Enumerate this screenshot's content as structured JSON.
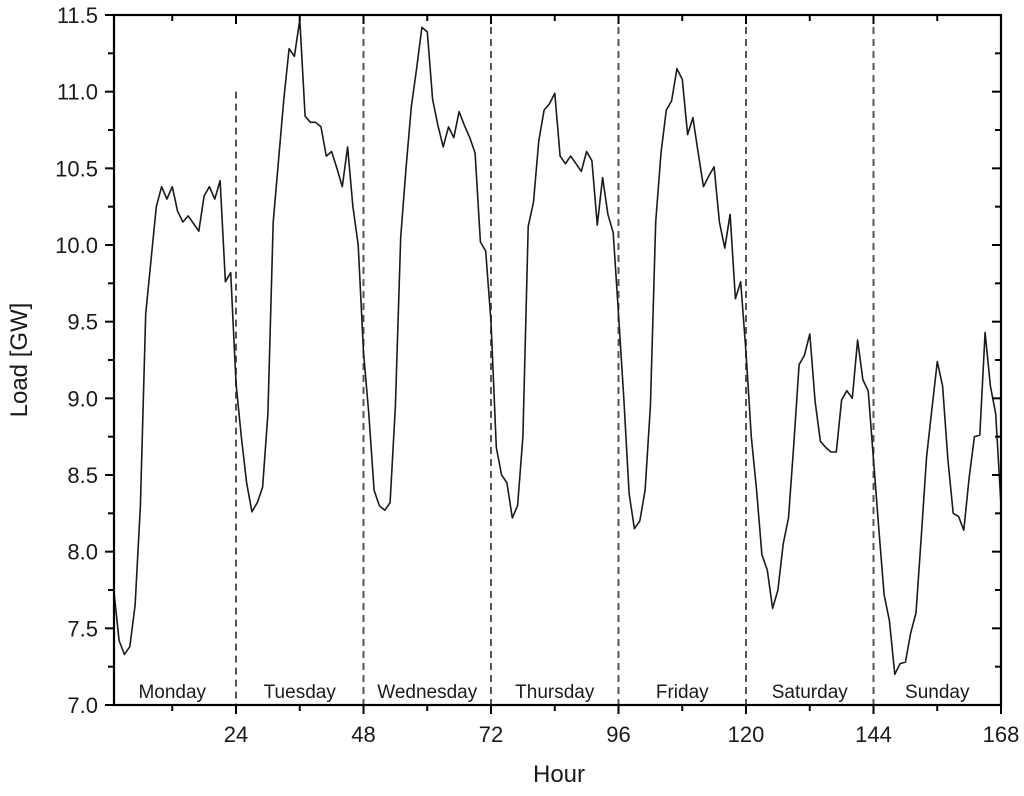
{
  "chart_data": {
    "type": "line",
    "title": "",
    "xlabel": "Hour",
    "ylabel": "Load [GW]",
    "xlim": [
      1,
      168
    ],
    "ylim": [
      7.0,
      11.5
    ],
    "grid": false,
    "legend": null,
    "xticks": [
      24,
      48,
      72,
      96,
      120,
      144,
      168
    ],
    "xtick_labels": [
      "24",
      "48",
      "72",
      "96",
      "120",
      "144",
      "168"
    ],
    "x_minor_ticks": [
      12,
      36,
      60,
      84,
      108,
      132,
      156
    ],
    "yticks": [
      7.0,
      7.5,
      8.0,
      8.5,
      9.0,
      9.5,
      10.0,
      10.5,
      11.0,
      11.5
    ],
    "ytick_labels": [
      "7.0",
      "7.5",
      "8.0",
      "8.5",
      "9.0",
      "9.5",
      "10.0",
      "10.5",
      "11.0",
      "11.5"
    ],
    "y_minor_ticks": [
      7.25,
      7.75,
      8.25,
      8.75,
      9.25,
      9.75,
      10.25,
      10.75,
      11.25
    ],
    "day_dividers": [
      {
        "x": 24,
        "y_top": 11.0
      },
      {
        "x": 48,
        "y_top": 11.5
      },
      {
        "x": 72,
        "y_top": 11.5
      },
      {
        "x": 96,
        "y_top": 11.5
      },
      {
        "x": 120,
        "y_top": 11.5
      },
      {
        "x": 144,
        "y_top": 11.5
      }
    ],
    "day_labels": [
      {
        "label": "Monday",
        "x": 12
      },
      {
        "label": "Tuesday",
        "x": 36
      },
      {
        "label": "Wednesday",
        "x": 60
      },
      {
        "label": "Thursday",
        "x": 84
      },
      {
        "label": "Friday",
        "x": 108
      },
      {
        "label": "Saturday",
        "x": 132
      },
      {
        "label": "Sunday",
        "x": 156
      }
    ],
    "series": [
      {
        "name": "Load",
        "color": "#1a1a1a",
        "x_start": 1,
        "x_step": 1,
        "values": [
          7.75,
          7.42,
          7.33,
          7.38,
          7.65,
          8.3,
          9.55,
          9.9,
          10.25,
          10.38,
          10.3,
          10.38,
          10.22,
          10.15,
          10.19,
          10.14,
          10.09,
          10.32,
          10.38,
          10.3,
          10.42,
          9.76,
          9.82,
          9.1,
          8.75,
          8.45,
          8.26,
          8.32,
          8.42,
          8.9,
          10.15,
          10.55,
          10.95,
          11.28,
          11.23,
          11.47,
          10.84,
          10.8,
          10.8,
          10.77,
          10.58,
          10.61,
          10.5,
          10.38,
          10.64,
          10.25,
          10.0,
          9.3,
          8.9,
          8.4,
          8.3,
          8.27,
          8.32,
          8.95,
          10.05,
          10.5,
          10.9,
          11.15,
          11.42,
          11.39,
          10.95,
          10.78,
          10.64,
          10.77,
          10.7,
          10.87,
          10.78,
          10.7,
          10.6,
          10.02,
          9.96,
          9.5,
          8.68,
          8.5,
          8.45,
          8.22,
          8.3,
          8.75,
          10.12,
          10.28,
          10.68,
          10.88,
          10.92,
          10.99,
          10.58,
          10.53,
          10.58,
          10.53,
          10.48,
          10.61,
          10.55,
          10.13,
          10.44,
          10.2,
          10.08,
          9.55,
          9.0,
          8.38,
          8.15,
          8.2,
          8.4,
          8.95,
          10.15,
          10.6,
          10.88,
          10.94,
          11.15,
          11.08,
          10.72,
          10.83,
          10.6,
          10.38,
          10.45,
          10.51,
          10.15,
          9.98,
          10.2,
          9.65,
          9.76,
          9.3,
          8.75,
          8.4,
          7.98,
          7.88,
          7.63,
          7.75,
          8.05,
          8.22,
          8.7,
          9.22,
          9.28,
          9.42,
          8.98,
          8.72,
          8.68,
          8.65,
          8.65,
          8.99,
          9.05,
          9.0,
          9.38,
          9.12,
          9.05,
          8.6,
          8.15,
          7.72,
          7.55,
          7.2,
          7.27,
          7.28,
          7.47,
          7.6,
          8.1,
          8.62,
          8.93,
          9.24,
          9.08,
          8.6,
          8.25,
          8.23,
          8.14,
          8.48,
          8.75,
          8.76,
          9.43,
          9.08,
          8.9,
          8.3
        ]
      }
    ]
  }
}
